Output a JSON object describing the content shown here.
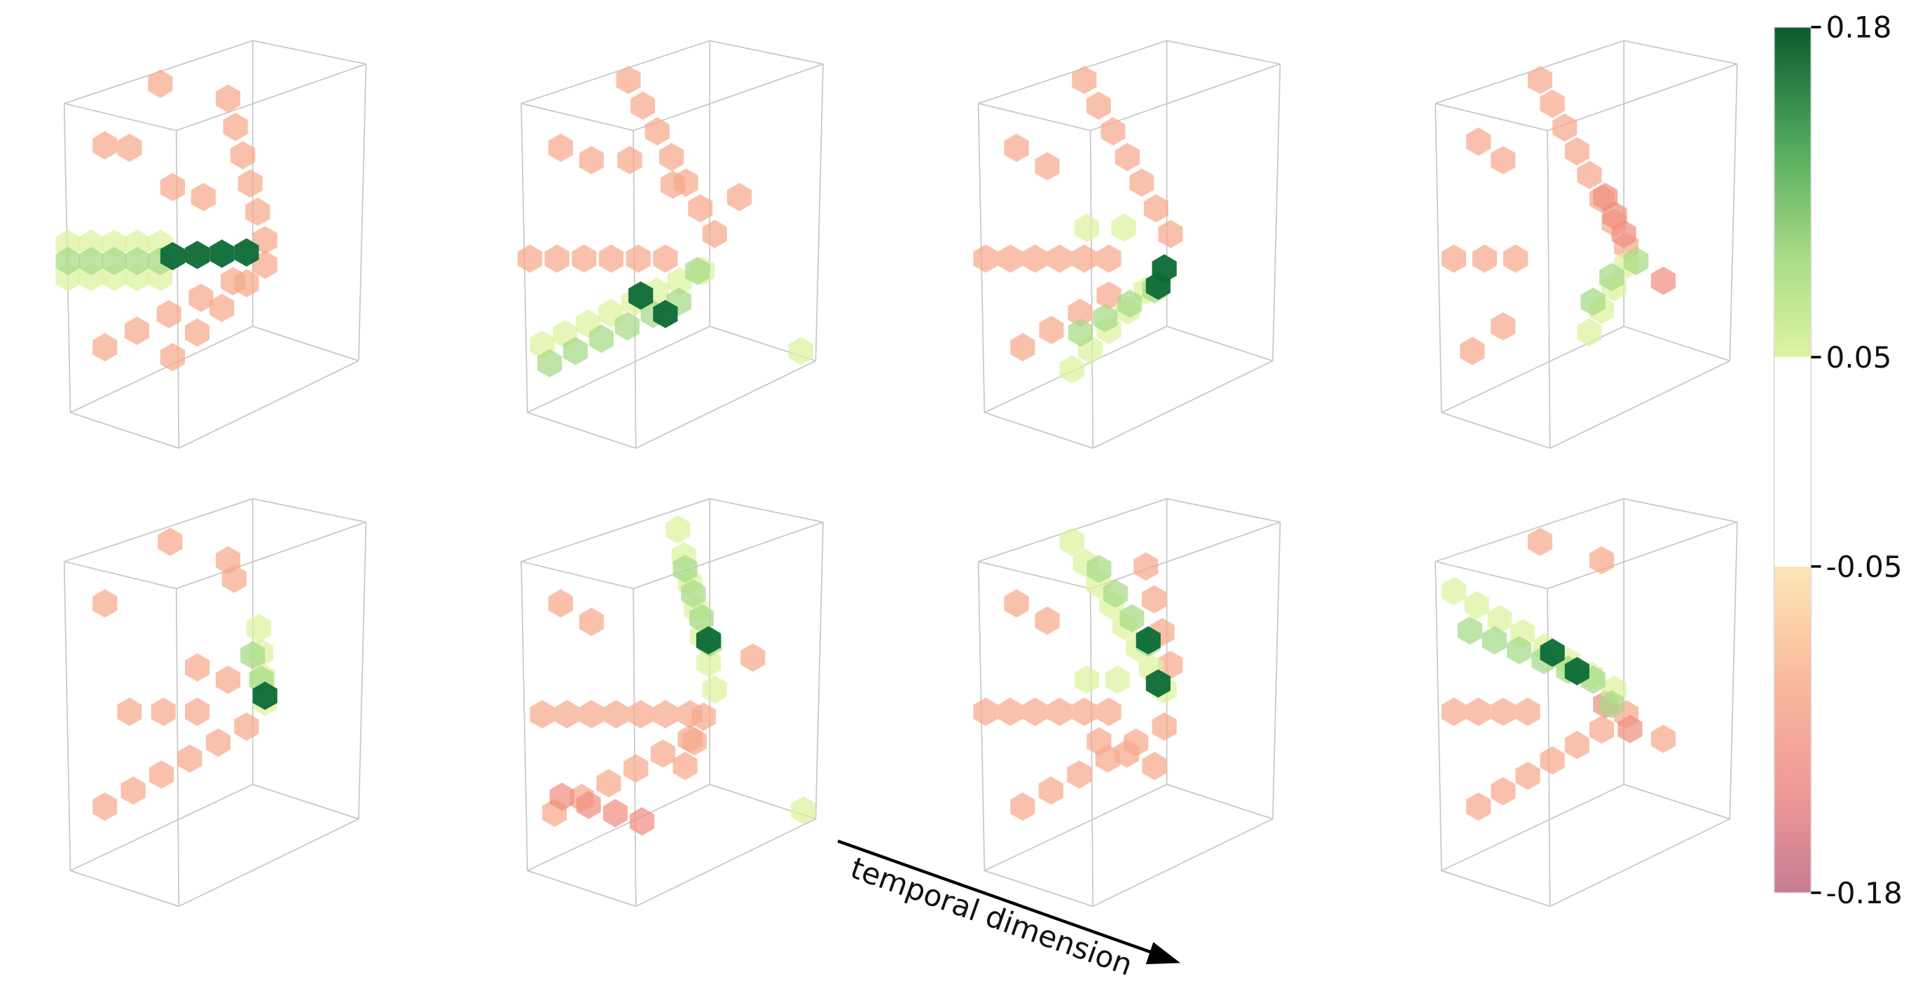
{
  "chart_data": {
    "type": "voxel-panels",
    "annotation": "temporal dimension",
    "colorbar": {
      "lim": [
        -0.18,
        0.18
      ],
      "ticks": [
        0.18,
        0.05,
        -0.05,
        -0.18
      ]
    }
  }
}
